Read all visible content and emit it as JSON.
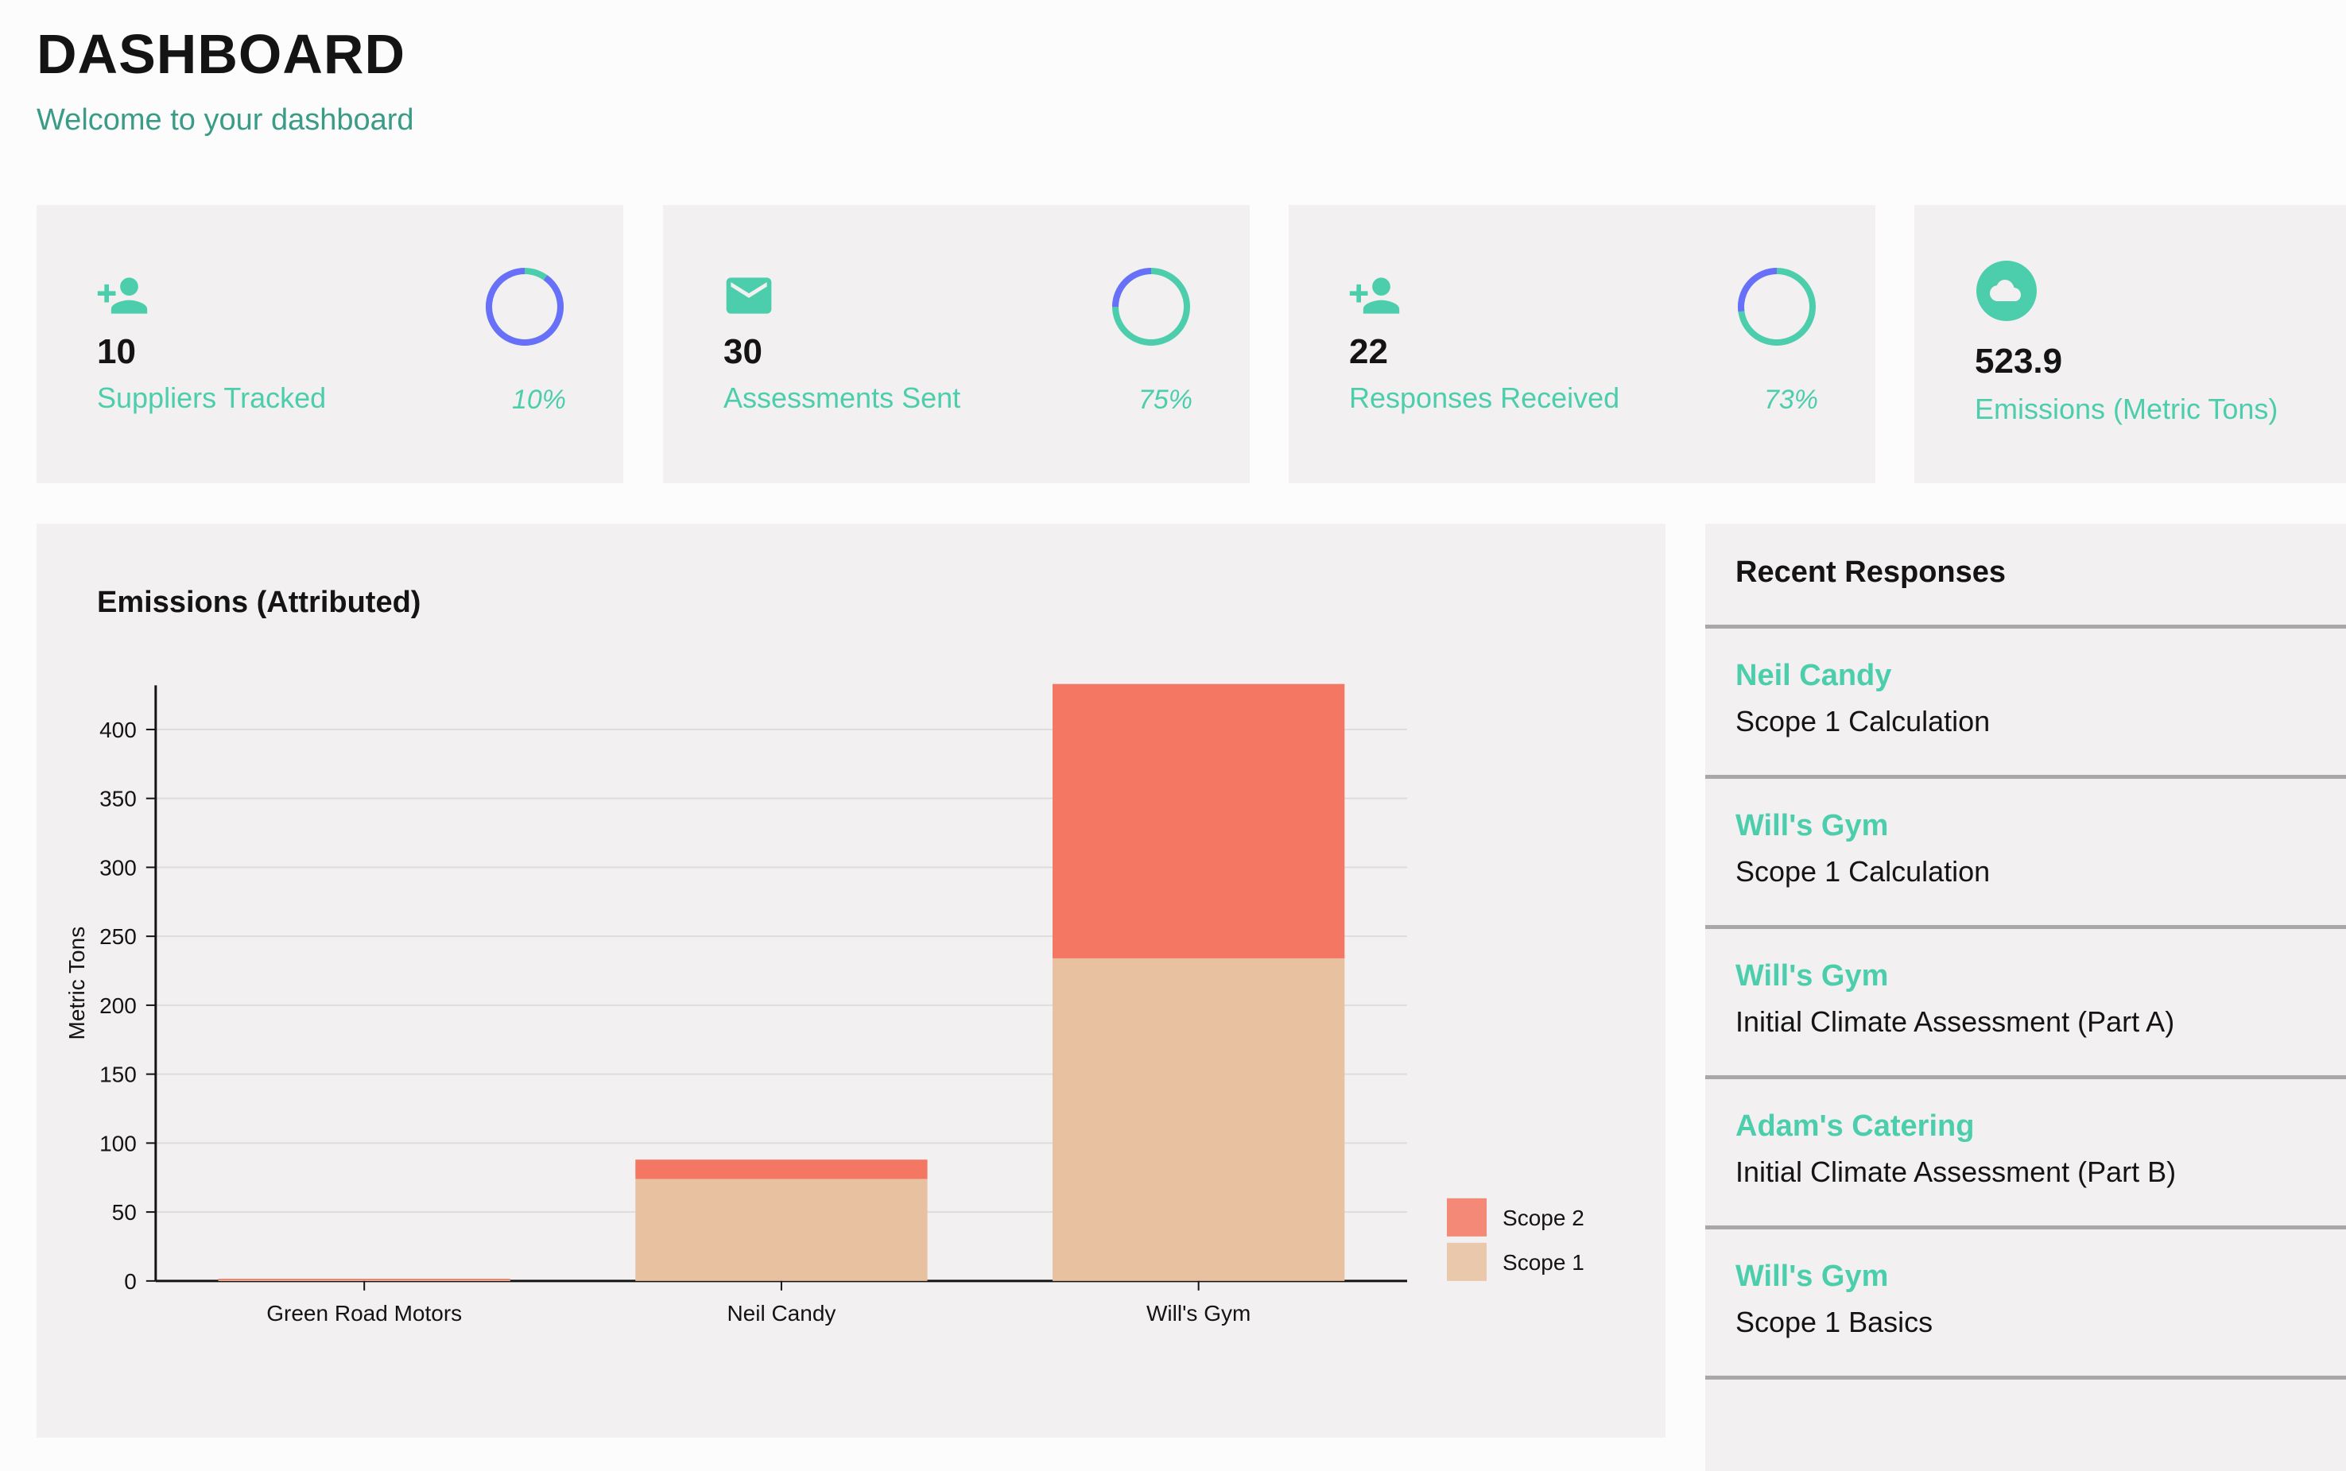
{
  "header": {
    "title": "DASHBOARD",
    "subtitle": "Welcome to your dashboard"
  },
  "stat_cards": [
    {
      "value": "10",
      "label": "Suppliers Tracked",
      "percent_text": "10%",
      "progress": 0.1,
      "icon": "person-add-icon"
    },
    {
      "value": "30",
      "label": "Assessments Sent",
      "percent_text": "75%",
      "progress": 0.75,
      "icon": "email-icon"
    },
    {
      "value": "22",
      "label": "Responses Received",
      "percent_text": "73%",
      "progress": 0.73,
      "icon": "person-add-icon"
    },
    {
      "value": "523.9",
      "label": "Emissions (Metric Tons)",
      "icon": "cloud-icon"
    }
  ],
  "colors": {
    "accent": "#4cceac",
    "ring_progress": "#6870fa",
    "scope2": "#f47763",
    "scope1": "#e8c1a0"
  },
  "chart_panel": {
    "title": "Emissions (Attributed)"
  },
  "chart_data": {
    "type": "bar",
    "stacked": true,
    "categories": [
      "Green Road Motors",
      "Neil Candy",
      "Will's Gym"
    ],
    "series": [
      {
        "name": "Scope 1",
        "values": [
          0.5,
          74,
          234
        ]
      },
      {
        "name": "Scope 2",
        "values": [
          1,
          14,
          199
        ]
      }
    ],
    "ylabel": "Metric Tons",
    "xlabel": "",
    "ylim": [
      0,
      432
    ],
    "yticks": [
      0,
      50,
      100,
      150,
      200,
      250,
      300,
      350,
      400
    ],
    "grid": true,
    "legend": "bottom-right",
    "legend_order": [
      "Scope 2",
      "Scope 1"
    ]
  },
  "recent_responses": {
    "title": "Recent Responses",
    "items": [
      {
        "name": "Neil Candy",
        "assessment": "Scope 1 Calculation"
      },
      {
        "name": "Will's Gym",
        "assessment": "Scope 1 Calculation"
      },
      {
        "name": "Will's Gym",
        "assessment": "Initial Climate Assessment (Part A)"
      },
      {
        "name": "Adam's Catering",
        "assessment": "Initial Climate Assessment (Part B)"
      },
      {
        "name": "Will's Gym",
        "assessment": "Scope 1 Basics"
      }
    ]
  }
}
